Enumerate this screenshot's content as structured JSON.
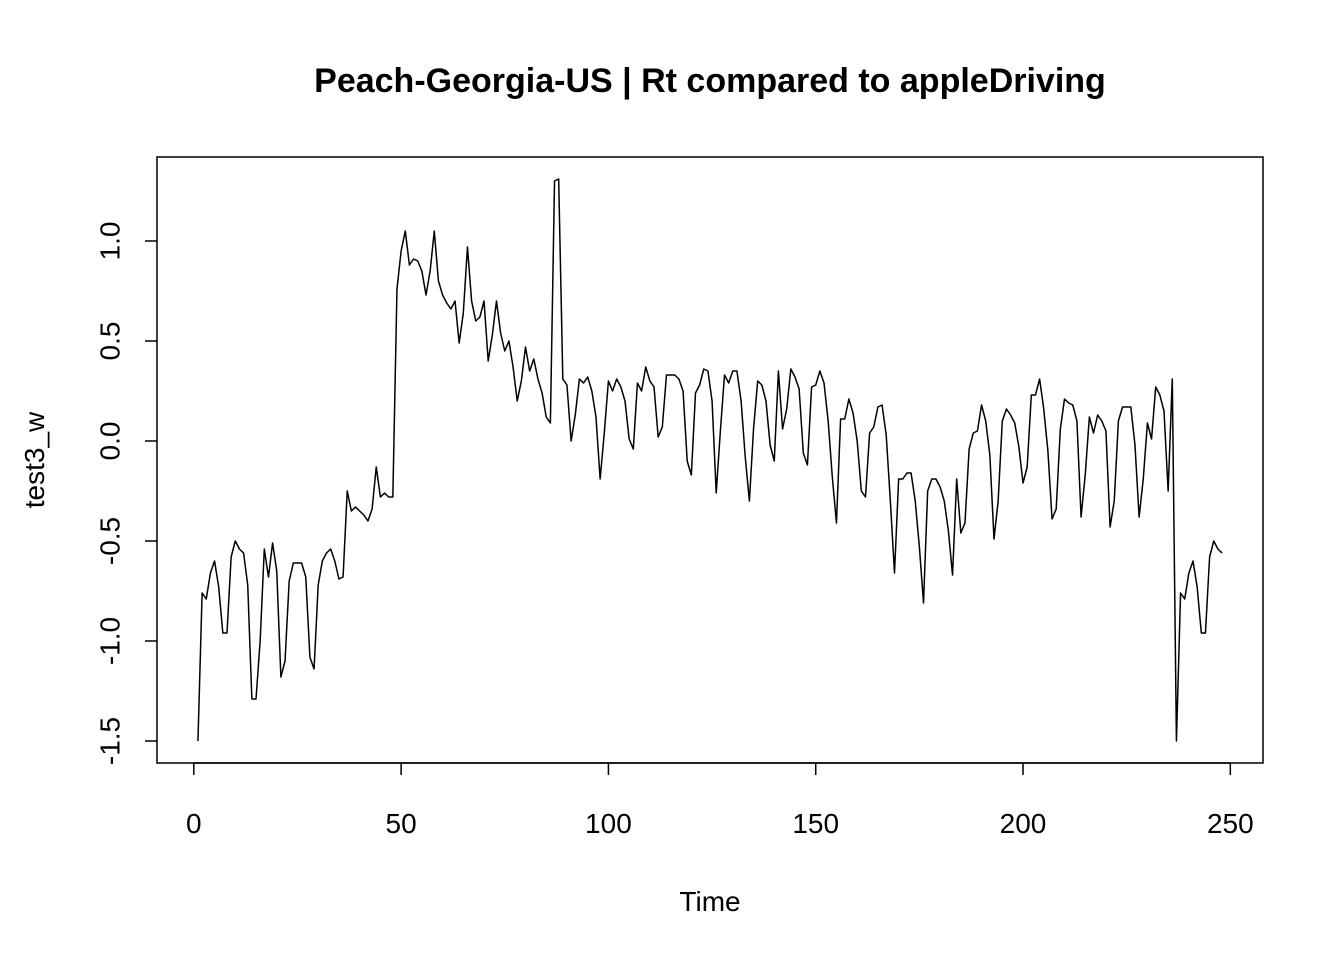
{
  "chart_data": {
    "type": "line",
    "title": "Peach-Georgia-US | Rt compared to appleDriving",
    "x_label": "Time",
    "y_label": "test3_w",
    "x": [
      1,
      2,
      3,
      4,
      5,
      6,
      7,
      8,
      9,
      10,
      11,
      12,
      13,
      14,
      15,
      16,
      17,
      18,
      19,
      20,
      21,
      22,
      23,
      24,
      25,
      26,
      27,
      28,
      29,
      30,
      31,
      32,
      33,
      34,
      35,
      36,
      37,
      38,
      39,
      40,
      41,
      42,
      43,
      44,
      45,
      46,
      47,
      48,
      49,
      50,
      51,
      52,
      53,
      54,
      55,
      56,
      57,
      58,
      59,
      60,
      61,
      62,
      63,
      64,
      65,
      66,
      67,
      68,
      69,
      70,
      71,
      72,
      73,
      74,
      75,
      76,
      77,
      78,
      79,
      80,
      81,
      82,
      83,
      84,
      85,
      86,
      87,
      88,
      89,
      90,
      91,
      92,
      93,
      94,
      95,
      96,
      97,
      98,
      99,
      100,
      101,
      102,
      103,
      104,
      105,
      106,
      107,
      108,
      109,
      110,
      111,
      112,
      113,
      114,
      115,
      116,
      117,
      118,
      119,
      120,
      121,
      122,
      123,
      124,
      125,
      126,
      127,
      128,
      129,
      130,
      131,
      132,
      133,
      134,
      135,
      136,
      137,
      138,
      139,
      140,
      141,
      142,
      143,
      144,
      145,
      146,
      147,
      148,
      149,
      150,
      151,
      152,
      153,
      154,
      155,
      156,
      157,
      158,
      159,
      160,
      161,
      162,
      163,
      164,
      165,
      166,
      167,
      168,
      169,
      170,
      171,
      172,
      173,
      174,
      175,
      176,
      177,
      178,
      179,
      180,
      181,
      182,
      183,
      184,
      185,
      186,
      187,
      188,
      189,
      190,
      191,
      192,
      193,
      194,
      195,
      196,
      197,
      198,
      199,
      200,
      201,
      202,
      203,
      204,
      205,
      206,
      207,
      208,
      209,
      210,
      211,
      212,
      213,
      214,
      215,
      216,
      217,
      218,
      219,
      220,
      221,
      222,
      223,
      224,
      225,
      226,
      227,
      228,
      229,
      230,
      231,
      232,
      233,
      234,
      235,
      236,
      237,
      238,
      239,
      240,
      241,
      242,
      243,
      244,
      245,
      246,
      247,
      248
    ],
    "series": [
      {
        "color": "#000000",
        "values": [
          -1.5,
          -0.76,
          -0.79,
          -0.66,
          -0.6,
          -0.73,
          -0.96,
          -0.96,
          -0.58,
          -0.5,
          -0.54,
          -0.56,
          -0.72,
          -1.29,
          -1.29,
          -1.0,
          -0.54,
          -0.68,
          -0.51,
          -0.65,
          -1.18,
          -1.1,
          -0.7,
          -0.61,
          -0.61,
          -0.61,
          -0.68,
          -1.08,
          -1.14,
          -0.72,
          -0.6,
          -0.56,
          -0.54,
          -0.6,
          -0.69,
          -0.68,
          -0.25,
          -0.35,
          -0.33,
          -0.35,
          -0.37,
          -0.4,
          -0.34,
          -0.13,
          -0.28,
          -0.26,
          -0.28,
          -0.28,
          0.76,
          0.95,
          1.05,
          0.88,
          0.91,
          0.9,
          0.85,
          0.73,
          0.85,
          1.05,
          0.8,
          0.73,
          0.69,
          0.66,
          0.7,
          0.49,
          0.64,
          0.97,
          0.7,
          0.6,
          0.62,
          0.7,
          0.4,
          0.53,
          0.7,
          0.54,
          0.45,
          0.5,
          0.37,
          0.2,
          0.3,
          0.47,
          0.35,
          0.41,
          0.31,
          0.24,
          0.12,
          0.09,
          1.3,
          1.31,
          0.31,
          0.28,
          0.0,
          0.13,
          0.31,
          0.29,
          0.32,
          0.25,
          0.12,
          -0.19,
          0.04,
          0.3,
          0.25,
          0.31,
          0.27,
          0.2,
          0.01,
          -0.04,
          0.29,
          0.25,
          0.37,
          0.3,
          0.27,
          0.02,
          0.07,
          0.33,
          0.33,
          0.33,
          0.31,
          0.25,
          -0.1,
          -0.17,
          0.24,
          0.28,
          0.36,
          0.35,
          0.2,
          -0.26,
          0.05,
          0.33,
          0.29,
          0.35,
          0.35,
          0.2,
          -0.08,
          -0.3,
          0.06,
          0.3,
          0.28,
          0.2,
          -0.02,
          -0.1,
          0.35,
          0.06,
          0.16,
          0.36,
          0.32,
          0.26,
          -0.06,
          -0.12,
          0.27,
          0.28,
          0.35,
          0.29,
          0.1,
          -0.18,
          -0.41,
          0.11,
          0.11,
          0.21,
          0.14,
          0.0,
          -0.25,
          -0.28,
          0.04,
          0.07,
          0.17,
          0.18,
          0.03,
          -0.3,
          -0.66,
          -0.19,
          -0.19,
          -0.16,
          -0.16,
          -0.3,
          -0.53,
          -0.81,
          -0.25,
          -0.19,
          -0.19,
          -0.23,
          -0.3,
          -0.45,
          -0.67,
          -0.19,
          -0.46,
          -0.41,
          -0.04,
          0.04,
          0.05,
          0.18,
          0.1,
          -0.07,
          -0.49,
          -0.3,
          0.1,
          0.16,
          0.13,
          0.09,
          -0.03,
          -0.21,
          -0.13,
          0.23,
          0.23,
          0.31,
          0.16,
          -0.05,
          -0.39,
          -0.34,
          0.06,
          0.21,
          0.19,
          0.18,
          0.1,
          -0.38,
          -0.17,
          0.12,
          0.04,
          0.13,
          0.1,
          0.05,
          -0.43,
          -0.3,
          0.1,
          0.17,
          0.17,
          0.17,
          -0.02,
          -0.38,
          -0.19,
          0.09,
          0.01,
          0.27,
          0.23,
          0.15,
          -0.25,
          0.31,
          -1.5,
          -0.76,
          -0.79,
          -0.66,
          -0.6,
          -0.73,
          -0.96,
          -0.96,
          -0.58,
          -0.5,
          -0.54,
          -0.56
        ]
      }
    ],
    "xlim": [
      -8.88,
      257.88
    ],
    "ylim": [
      -1.61,
      1.42
    ],
    "xticks": [
      0,
      50,
      100,
      150,
      200,
      250
    ],
    "yticks": [
      -1.5,
      {
        "value": -1,
        "label": "-1.0"
      },
      -0.5,
      {
        "value": 0,
        "label": "0.0"
      },
      0.5,
      {
        "value": 1,
        "label": "1.0"
      }
    ]
  }
}
